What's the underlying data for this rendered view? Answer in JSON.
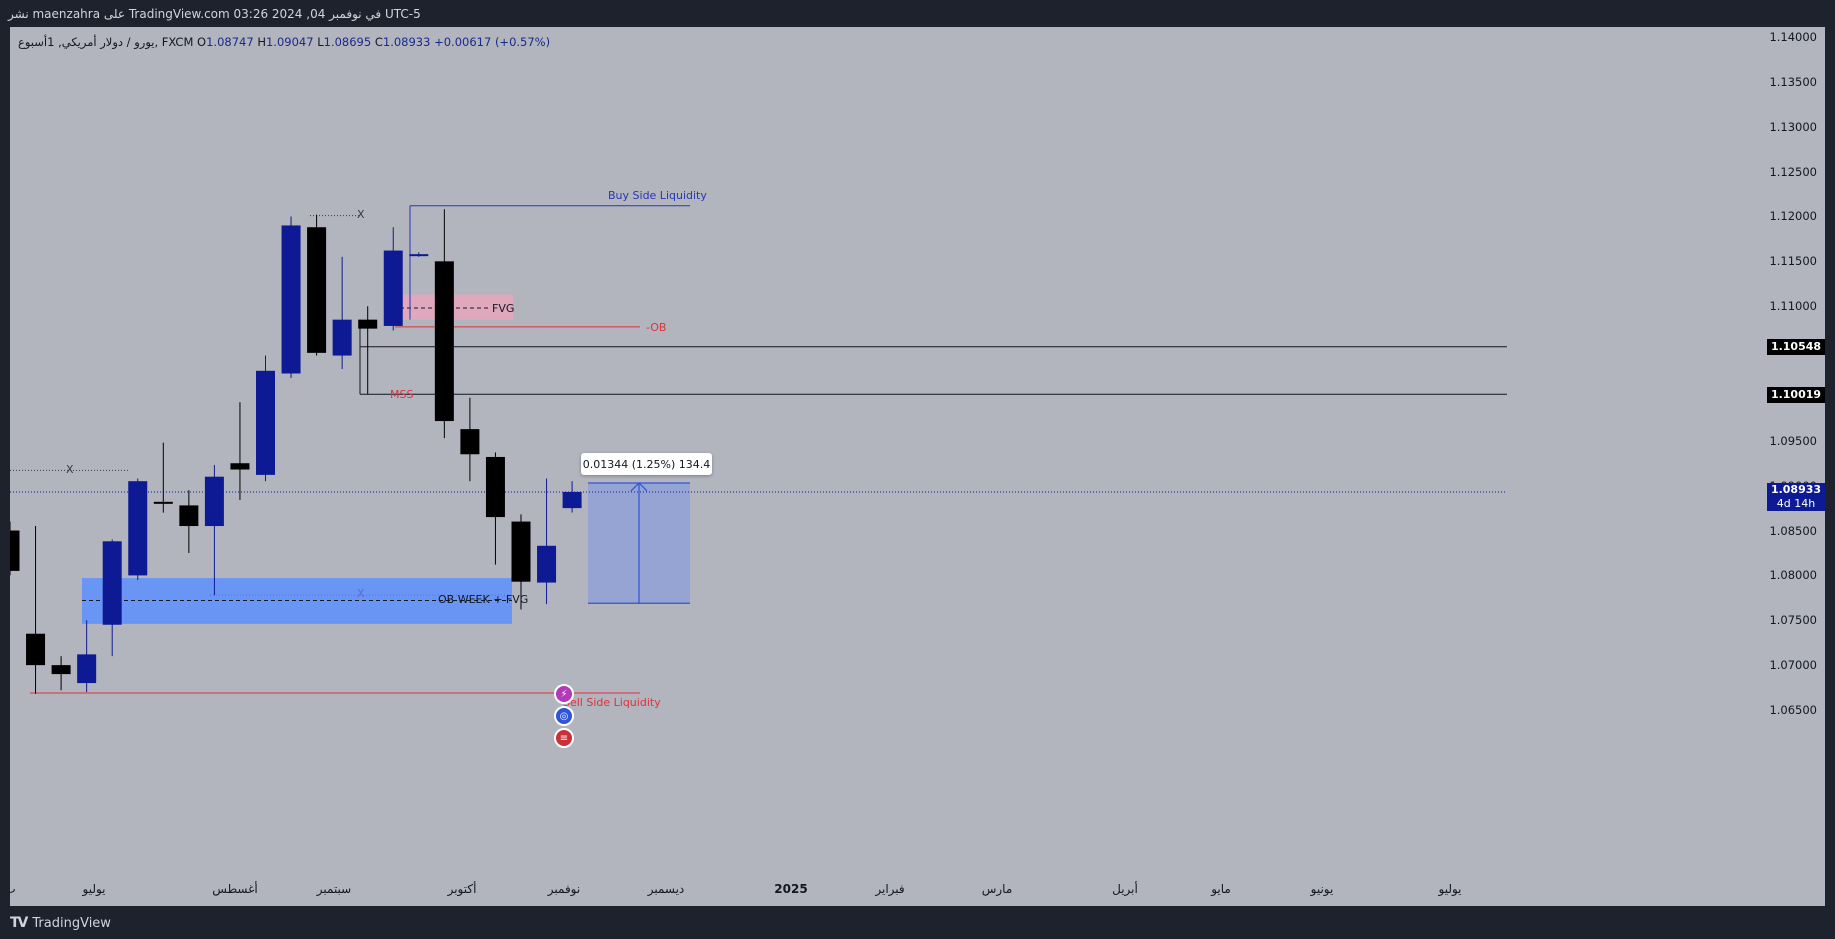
{
  "header": {
    "publish_text": "نشر maenzahra على TradingView.com 03:26 2024 ,04 في نوفمبر UTC-5"
  },
  "legend": {
    "symbol": "يورو / دولار أمريكي, 1أسبوع, FXCM",
    "o_label": "O",
    "o_value": "1.08747",
    "h_label": "H",
    "h_value": "1.09047",
    "l_label": "L",
    "l_value": "1.08695",
    "c_label": "C",
    "c_value": "1.08933",
    "change": "+0.00617 (+0.57%)"
  },
  "price_axis": [
    "1.14000",
    "1.13500",
    "1.13000",
    "1.12500",
    "1.12000",
    "1.11500",
    "1.11000",
    "1.10500",
    "1.10000",
    "1.09500",
    "1.09000",
    "1.08500",
    "1.08000",
    "1.07500",
    "1.07000",
    "1.06500"
  ],
  "price_badges": {
    "level_1": "1.10548",
    "level_2": "1.10019",
    "current_price": "1.08933",
    "countdown": "4d 14h"
  },
  "time_axis": [
    "ب",
    "يوليو",
    "أغسطس",
    "سبتمبر",
    "أكتوبر",
    "نوفمبر",
    "ديسمبر",
    "2025",
    "فبراير",
    "مارس",
    "أبريل",
    "مايو",
    "يونيو",
    "يوليو"
  ],
  "annotations": {
    "buy_side": "Buy Side Liquidity",
    "sell_side": "Sell Side Liquidity",
    "fvg": "FVG",
    "ob": "-OB",
    "mss": "MSS",
    "ob_week": "OB WEEK + FVG",
    "x_mark": "X",
    "measure": "0.01344 (1.25%) 134.4"
  },
  "events": [
    "lightning-icon",
    "globe-icon",
    "us-flag-icon"
  ],
  "chart_data": {
    "type": "candlestick",
    "symbol": "EURUSD",
    "timeframe": "1W",
    "ylim": [
      1.062,
      1.142
    ],
    "candles": [
      {
        "o": 1.085,
        "h": 1.086,
        "l": 1.08,
        "c": 1.0805
      },
      {
        "o": 1.0735,
        "h": 1.0855,
        "l": 1.0668,
        "c": 1.07
      },
      {
        "o": 1.07,
        "h": 1.071,
        "l": 1.0672,
        "c": 1.069
      },
      {
        "o": 1.068,
        "h": 1.075,
        "l": 1.067,
        "c": 1.0712
      },
      {
        "o": 1.0745,
        "h": 1.084,
        "l": 1.071,
        "c": 1.0838
      },
      {
        "o": 1.08,
        "h": 1.0908,
        "l": 1.0795,
        "c": 1.0905
      },
      {
        "o": 1.0882,
        "h": 1.0948,
        "l": 1.087,
        "c": 1.088
      },
      {
        "o": 1.0878,
        "h": 1.0895,
        "l": 1.0825,
        "c": 1.0855
      },
      {
        "o": 1.0855,
        "h": 1.0923,
        "l": 1.0778,
        "c": 1.091
      },
      {
        "o": 1.0925,
        "h": 1.0993,
        "l": 1.0884,
        "c": 1.0918
      },
      {
        "o": 1.0912,
        "h": 1.1045,
        "l": 1.0905,
        "c": 1.1028
      },
      {
        "o": 1.1025,
        "h": 1.12,
        "l": 1.102,
        "c": 1.119
      },
      {
        "o": 1.1188,
        "h": 1.1202,
        "l": 1.1045,
        "c": 1.1048
      },
      {
        "o": 1.1045,
        "h": 1.1155,
        "l": 1.103,
        "c": 1.1085
      },
      {
        "o": 1.1085,
        "h": 1.11,
        "l": 1.1002,
        "c": 1.1075
      },
      {
        "o": 1.1078,
        "h": 1.1188,
        "l": 1.1073,
        "c": 1.1162
      },
      {
        "o": 1.1158,
        "h": 1.116,
        "l": 1.1155,
        "c": 1.1158
      },
      {
        "o": 1.115,
        "h": 1.1208,
        "l": 1.0953,
        "c": 1.0972
      },
      {
        "o": 1.0963,
        "h": 1.0998,
        "l": 1.0905,
        "c": 1.0935
      },
      {
        "o": 1.0932,
        "h": 1.0937,
        "l": 1.0812,
        "c": 1.0865
      },
      {
        "o": 1.086,
        "h": 1.0868,
        "l": 1.0762,
        "c": 1.0793
      },
      {
        "o": 1.0792,
        "h": 1.0908,
        "l": 1.0768,
        "c": 1.0833
      },
      {
        "o": 1.0875,
        "h": 1.0905,
        "l": 1.087,
        "c": 1.0893
      }
    ]
  },
  "colors": {
    "bull": "#0d1a94",
    "bear": "#000000",
    "background": "#b2b5be",
    "frame": "#1e222d",
    "ob_zone": "#5c8fff",
    "fvg_zone": "#e8a6bd",
    "measure_zone": "#8c9fd9",
    "red_line": "#e0303a",
    "blue_line": "#2638b4"
  }
}
